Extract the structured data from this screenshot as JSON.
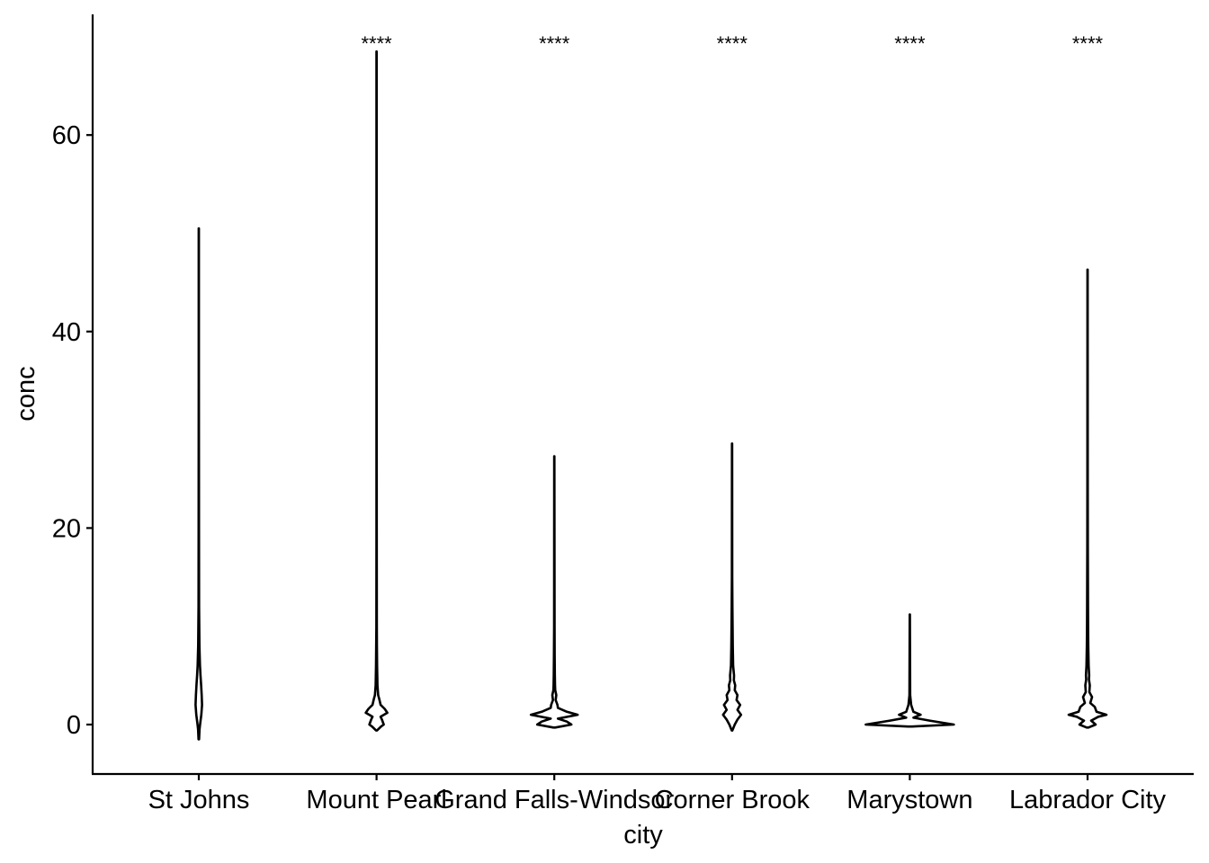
{
  "chart_data": {
    "type": "violin",
    "xlabel": "city",
    "ylabel": "conc",
    "ylim": [
      -5,
      72
    ],
    "y_ticks": [
      "0",
      "20",
      "40",
      "60"
    ],
    "grid": false,
    "legend": "none",
    "categories": [
      "St Johns",
      "Mount Pearl",
      "Grand Falls-Windsor",
      "Corner Brook",
      "Marystown",
      "Labrador City"
    ],
    "significance": [
      "",
      "****",
      "****",
      "****",
      "****",
      "****"
    ],
    "violins": [
      {
        "category": "St Johns",
        "min": -1.5,
        "max": 50.5,
        "profile": [
          [
            -1.5,
            0.3
          ],
          [
            -0.5,
            0.8
          ],
          [
            0,
            1.4
          ],
          [
            1,
            2.8
          ],
          [
            2,
            3.6
          ],
          [
            3,
            3.2
          ],
          [
            4,
            2.6
          ],
          [
            5,
            1.9
          ],
          [
            6,
            1.3
          ],
          [
            8,
            0.7
          ],
          [
            12,
            0.35
          ],
          [
            20,
            0.18
          ],
          [
            35,
            0.1
          ],
          [
            50.5,
            0.06
          ]
        ]
      },
      {
        "category": "Mount Pearl",
        "min": -0.6,
        "max": 68.5,
        "profile": [
          [
            -0.6,
            0.5
          ],
          [
            -0.2,
            5
          ],
          [
            0,
            8
          ],
          [
            0.5,
            6
          ],
          [
            0.8,
            4.5
          ],
          [
            1.2,
            12
          ],
          [
            1.6,
            9
          ],
          [
            2,
            4.5
          ],
          [
            2.6,
            3
          ],
          [
            3,
            1.8
          ],
          [
            3.5,
            1.4
          ],
          [
            4,
            1
          ],
          [
            5,
            0.8
          ],
          [
            6,
            0.6
          ],
          [
            8,
            0.4
          ],
          [
            10,
            0.25
          ],
          [
            20,
            0.15
          ],
          [
            40,
            0.1
          ],
          [
            68.5,
            0.06
          ]
        ]
      },
      {
        "category": "Grand Falls-Windsor",
        "min": -0.3,
        "max": 27.3,
        "profile": [
          [
            -0.3,
            1
          ],
          [
            0,
            19
          ],
          [
            0.3,
            14
          ],
          [
            0.6,
            4
          ],
          [
            1,
            26
          ],
          [
            1.3,
            14
          ],
          [
            1.7,
            4
          ],
          [
            2,
            3.5
          ],
          [
            2.5,
            1.5
          ],
          [
            3,
            2.2
          ],
          [
            3.5,
            1
          ],
          [
            4,
            0.8
          ],
          [
            5,
            0.6
          ],
          [
            7,
            0.4
          ],
          [
            10,
            0.25
          ],
          [
            27.3,
            0.1
          ]
        ]
      },
      {
        "category": "Corner Brook",
        "min": -0.6,
        "max": 28.6,
        "profile": [
          [
            -0.6,
            0.3
          ],
          [
            0,
            3
          ],
          [
            0.5,
            6
          ],
          [
            1,
            10
          ],
          [
            1.5,
            6
          ],
          [
            2,
            9
          ],
          [
            2.5,
            5
          ],
          [
            3,
            6
          ],
          [
            3.5,
            3
          ],
          [
            4,
            3.5
          ],
          [
            4.5,
            2
          ],
          [
            5,
            2.2
          ],
          [
            6,
            1.2
          ],
          [
            7,
            1
          ],
          [
            8,
            0.8
          ],
          [
            10,
            0.6
          ],
          [
            12,
            0.4
          ],
          [
            15,
            0.2
          ],
          [
            28.6,
            0.1
          ]
        ]
      },
      {
        "category": "Marystown",
        "min": -0.2,
        "max": 11.2,
        "profile": [
          [
            -0.2,
            2
          ],
          [
            0,
            49
          ],
          [
            0.4,
            22
          ],
          [
            0.7,
            4
          ],
          [
            1,
            12
          ],
          [
            1.3,
            4
          ],
          [
            2,
            1.5
          ],
          [
            3,
            0.4
          ],
          [
            6,
            0.3
          ],
          [
            11.2,
            0.1
          ]
        ]
      },
      {
        "category": "Labrador City",
        "min": -0.3,
        "max": 46.3,
        "profile": [
          [
            -0.3,
            1
          ],
          [
            0,
            9
          ],
          [
            0.4,
            4
          ],
          [
            0.8,
            12
          ],
          [
            1,
            21
          ],
          [
            1.3,
            10
          ],
          [
            1.8,
            8
          ],
          [
            2.2,
            3
          ],
          [
            2.8,
            5
          ],
          [
            3.3,
            2
          ],
          [
            4,
            2.5
          ],
          [
            4.6,
            1.5
          ],
          [
            5,
            1.8
          ],
          [
            6,
            1.2
          ],
          [
            7,
            1
          ],
          [
            8,
            0.8
          ],
          [
            10,
            0.6
          ],
          [
            12,
            0.5
          ],
          [
            15,
            0.4
          ],
          [
            18,
            0.3
          ],
          [
            25,
            0.15
          ],
          [
            46.3,
            0.08
          ]
        ]
      }
    ]
  }
}
